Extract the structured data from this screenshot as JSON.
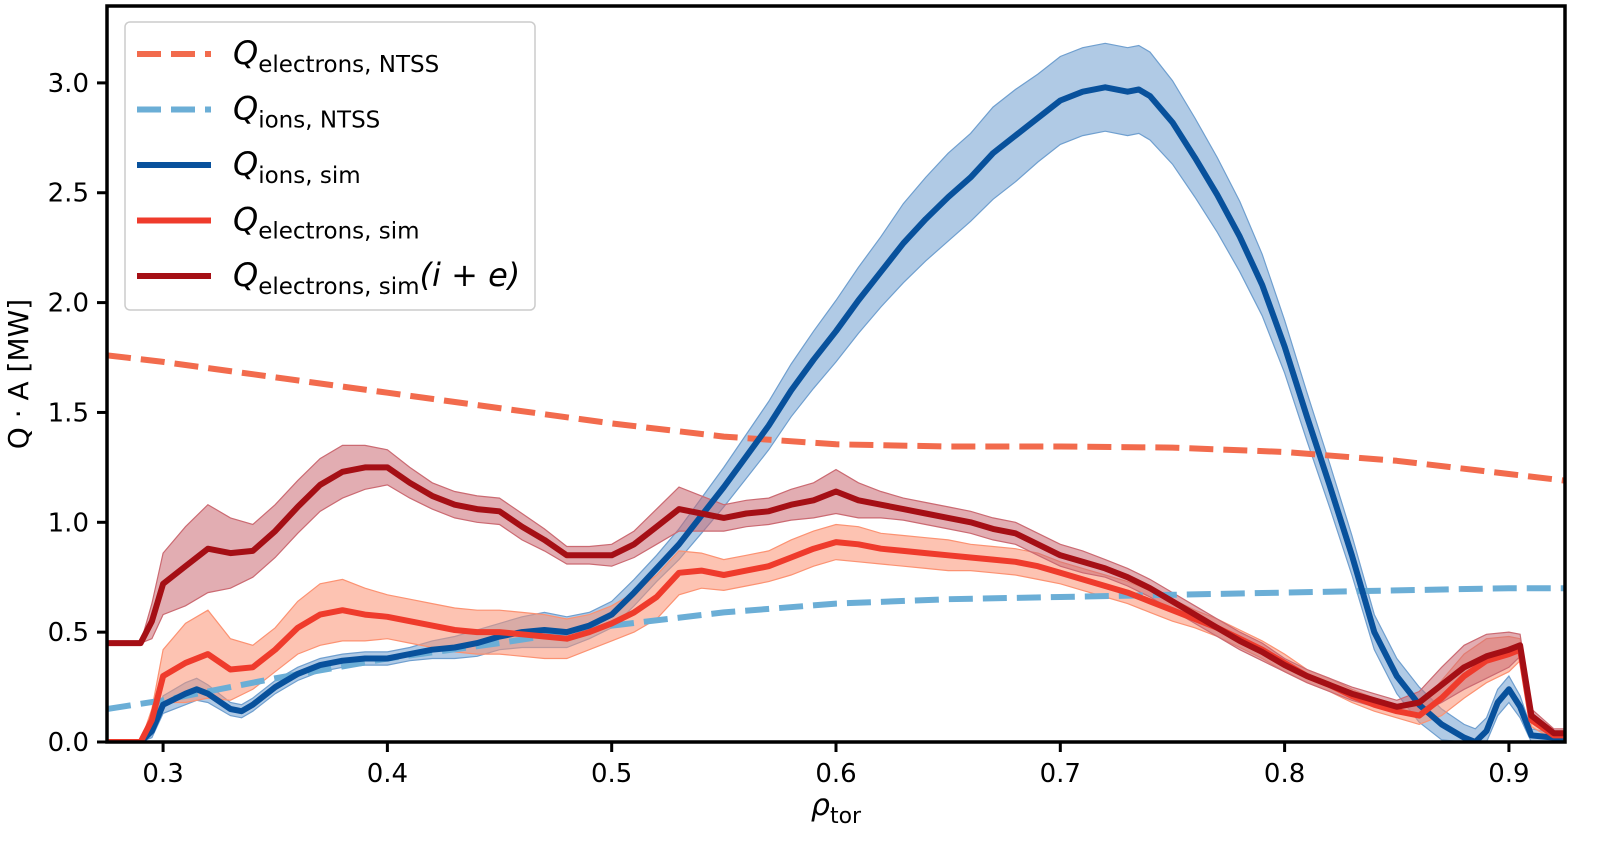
{
  "chart_data": {
    "type": "line",
    "title": "",
    "xlabel": {
      "symbol": "ρ",
      "sub": "tor"
    },
    "ylabel": "Q · A [MW]",
    "xlim": [
      0.275,
      0.925
    ],
    "ylim": [
      0.0,
      3.35
    ],
    "xticks": [
      0.3,
      0.4,
      0.5,
      0.6,
      0.7,
      0.8,
      0.9
    ],
    "xtick_labels": [
      "0.3",
      "0.4",
      "0.5",
      "0.6",
      "0.7",
      "0.8",
      "0.9"
    ],
    "yticks": [
      0.0,
      0.5,
      1.0,
      1.5,
      2.0,
      2.5,
      3.0
    ],
    "ytick_labels": [
      "0.0",
      "0.5",
      "1.0",
      "1.5",
      "2.0",
      "2.5",
      "3.0"
    ],
    "legend_position": "top-left",
    "series": [
      {
        "name": "Q_electrons,NTSS",
        "legend": {
          "symbol": "Q",
          "sub": "electrons, NTSS",
          "suffix": ""
        },
        "color": "#f26b4d",
        "style": "dashed",
        "x": [
          0.275,
          0.3,
          0.35,
          0.4,
          0.45,
          0.5,
          0.55,
          0.6,
          0.65,
          0.7,
          0.75,
          0.8,
          0.85,
          0.9,
          0.925
        ],
        "y": [
          1.76,
          1.73,
          1.66,
          1.59,
          1.52,
          1.45,
          1.39,
          1.355,
          1.345,
          1.345,
          1.34,
          1.32,
          1.28,
          1.22,
          1.19
        ]
      },
      {
        "name": "Q_ions,NTSS",
        "legend": {
          "symbol": "Q",
          "sub": "ions, NTSS",
          "suffix": ""
        },
        "color": "#6baed6",
        "style": "dashed",
        "x": [
          0.275,
          0.3,
          0.35,
          0.4,
          0.45,
          0.5,
          0.55,
          0.6,
          0.65,
          0.7,
          0.75,
          0.8,
          0.85,
          0.9,
          0.925
        ],
        "y": [
          0.15,
          0.19,
          0.29,
          0.38,
          0.45,
          0.53,
          0.59,
          0.63,
          0.65,
          0.66,
          0.67,
          0.68,
          0.69,
          0.7,
          0.7
        ]
      },
      {
        "name": "Q_ions,sim",
        "legend": {
          "symbol": "Q",
          "sub": "ions, sim",
          "suffix": ""
        },
        "color": "#08519c",
        "band_color": "#6f9fcf",
        "style": "solid",
        "x": [
          0.275,
          0.29,
          0.295,
          0.3,
          0.31,
          0.315,
          0.32,
          0.33,
          0.335,
          0.34,
          0.35,
          0.36,
          0.37,
          0.38,
          0.39,
          0.4,
          0.41,
          0.42,
          0.43,
          0.44,
          0.45,
          0.46,
          0.47,
          0.48,
          0.49,
          0.5,
          0.51,
          0.52,
          0.53,
          0.54,
          0.55,
          0.56,
          0.57,
          0.58,
          0.59,
          0.6,
          0.61,
          0.62,
          0.63,
          0.64,
          0.65,
          0.66,
          0.67,
          0.68,
          0.69,
          0.7,
          0.71,
          0.72,
          0.73,
          0.735,
          0.74,
          0.75,
          0.76,
          0.77,
          0.78,
          0.79,
          0.8,
          0.81,
          0.82,
          0.83,
          0.84,
          0.85,
          0.86,
          0.87,
          0.88,
          0.885,
          0.89,
          0.895,
          0.9,
          0.905,
          0.91,
          0.92,
          0.925
        ],
        "y": [
          0.0,
          0.0,
          0.05,
          0.17,
          0.22,
          0.24,
          0.22,
          0.15,
          0.14,
          0.17,
          0.25,
          0.31,
          0.35,
          0.37,
          0.38,
          0.38,
          0.4,
          0.42,
          0.43,
          0.45,
          0.48,
          0.5,
          0.51,
          0.5,
          0.53,
          0.58,
          0.68,
          0.79,
          0.9,
          1.03,
          1.16,
          1.3,
          1.44,
          1.6,
          1.74,
          1.87,
          2.01,
          2.14,
          2.27,
          2.38,
          2.48,
          2.57,
          2.68,
          2.76,
          2.84,
          2.92,
          2.96,
          2.98,
          2.96,
          2.97,
          2.94,
          2.82,
          2.66,
          2.49,
          2.3,
          2.08,
          1.8,
          1.48,
          1.17,
          0.85,
          0.5,
          0.3,
          0.17,
          0.08,
          0.02,
          0.0,
          0.05,
          0.18,
          0.24,
          0.16,
          0.03,
          0.02,
          0.02
        ],
        "band": [
          0.0,
          0.0,
          0.03,
          0.04,
          0.05,
          0.05,
          0.04,
          0.03,
          0.03,
          0.03,
          0.03,
          0.03,
          0.03,
          0.03,
          0.03,
          0.03,
          0.03,
          0.04,
          0.05,
          0.06,
          0.06,
          0.07,
          0.08,
          0.07,
          0.06,
          0.06,
          0.06,
          0.06,
          0.07,
          0.08,
          0.09,
          0.1,
          0.11,
          0.12,
          0.13,
          0.14,
          0.15,
          0.16,
          0.18,
          0.19,
          0.2,
          0.2,
          0.21,
          0.21,
          0.2,
          0.2,
          0.2,
          0.2,
          0.2,
          0.2,
          0.2,
          0.19,
          0.18,
          0.17,
          0.16,
          0.14,
          0.12,
          0.11,
          0.1,
          0.09,
          0.08,
          0.08,
          0.08,
          0.07,
          0.06,
          0.06,
          0.06,
          0.06,
          0.06,
          0.05,
          0.03,
          0.02,
          0.02
        ]
      },
      {
        "name": "Q_electrons,sim",
        "legend": {
          "symbol": "Q",
          "sub": "electrons, sim",
          "suffix": ""
        },
        "color": "#ef3b2c",
        "band_color": "#fc9272",
        "style": "solid",
        "x": [
          0.275,
          0.29,
          0.295,
          0.3,
          0.31,
          0.32,
          0.33,
          0.34,
          0.35,
          0.36,
          0.37,
          0.38,
          0.39,
          0.4,
          0.41,
          0.42,
          0.43,
          0.44,
          0.45,
          0.46,
          0.47,
          0.48,
          0.49,
          0.5,
          0.51,
          0.52,
          0.53,
          0.54,
          0.55,
          0.56,
          0.57,
          0.58,
          0.59,
          0.6,
          0.61,
          0.62,
          0.63,
          0.64,
          0.65,
          0.66,
          0.67,
          0.68,
          0.69,
          0.7,
          0.71,
          0.72,
          0.73,
          0.74,
          0.75,
          0.76,
          0.77,
          0.78,
          0.79,
          0.8,
          0.81,
          0.82,
          0.83,
          0.84,
          0.85,
          0.86,
          0.87,
          0.88,
          0.89,
          0.9,
          0.905,
          0.91,
          0.92,
          0.925
        ],
        "y": [
          0.0,
          0.0,
          0.1,
          0.3,
          0.36,
          0.4,
          0.33,
          0.34,
          0.42,
          0.52,
          0.58,
          0.6,
          0.58,
          0.57,
          0.55,
          0.53,
          0.51,
          0.5,
          0.5,
          0.49,
          0.48,
          0.47,
          0.5,
          0.54,
          0.59,
          0.66,
          0.77,
          0.78,
          0.76,
          0.78,
          0.8,
          0.84,
          0.88,
          0.91,
          0.9,
          0.88,
          0.87,
          0.86,
          0.85,
          0.84,
          0.83,
          0.82,
          0.8,
          0.77,
          0.74,
          0.71,
          0.68,
          0.64,
          0.6,
          0.56,
          0.52,
          0.47,
          0.42,
          0.36,
          0.3,
          0.26,
          0.21,
          0.17,
          0.14,
          0.12,
          0.2,
          0.3,
          0.37,
          0.4,
          0.42,
          0.1,
          0.03,
          0.03
        ],
        "band": [
          0.0,
          0.0,
          0.05,
          0.12,
          0.18,
          0.2,
          0.14,
          0.1,
          0.1,
          0.12,
          0.14,
          0.14,
          0.12,
          0.1,
          0.1,
          0.1,
          0.1,
          0.1,
          0.1,
          0.1,
          0.1,
          0.09,
          0.08,
          0.08,
          0.09,
          0.1,
          0.1,
          0.08,
          0.07,
          0.07,
          0.07,
          0.08,
          0.08,
          0.08,
          0.08,
          0.07,
          0.07,
          0.07,
          0.07,
          0.06,
          0.06,
          0.06,
          0.06,
          0.05,
          0.05,
          0.05,
          0.05,
          0.05,
          0.05,
          0.04,
          0.04,
          0.04,
          0.04,
          0.04,
          0.03,
          0.03,
          0.03,
          0.03,
          0.03,
          0.04,
          0.08,
          0.1,
          0.1,
          0.08,
          0.05,
          0.03,
          0.02,
          0.02
        ]
      },
      {
        "name": "Q_electrons,sim(i+e)",
        "legend": {
          "symbol": "Q",
          "sub": "electrons, sim",
          "suffix": "(i + e)"
        },
        "color": "#a50f15",
        "band_color": "#cb6a72",
        "style": "solid",
        "x": [
          0.275,
          0.29,
          0.295,
          0.3,
          0.31,
          0.32,
          0.33,
          0.34,
          0.35,
          0.36,
          0.37,
          0.38,
          0.39,
          0.4,
          0.41,
          0.42,
          0.43,
          0.44,
          0.45,
          0.46,
          0.47,
          0.48,
          0.49,
          0.5,
          0.51,
          0.52,
          0.53,
          0.54,
          0.55,
          0.56,
          0.57,
          0.58,
          0.59,
          0.6,
          0.61,
          0.62,
          0.63,
          0.64,
          0.65,
          0.66,
          0.67,
          0.68,
          0.69,
          0.7,
          0.71,
          0.72,
          0.73,
          0.74,
          0.75,
          0.76,
          0.77,
          0.78,
          0.79,
          0.8,
          0.81,
          0.82,
          0.83,
          0.84,
          0.85,
          0.86,
          0.87,
          0.88,
          0.89,
          0.9,
          0.905,
          0.91,
          0.92,
          0.925
        ],
        "y": [
          0.45,
          0.45,
          0.55,
          0.72,
          0.8,
          0.88,
          0.86,
          0.87,
          0.96,
          1.07,
          1.17,
          1.23,
          1.25,
          1.25,
          1.18,
          1.12,
          1.08,
          1.06,
          1.05,
          0.98,
          0.92,
          0.85,
          0.85,
          0.85,
          0.9,
          0.98,
          1.06,
          1.04,
          1.02,
          1.04,
          1.05,
          1.08,
          1.1,
          1.14,
          1.1,
          1.08,
          1.06,
          1.04,
          1.02,
          1.0,
          0.97,
          0.95,
          0.9,
          0.85,
          0.82,
          0.79,
          0.75,
          0.7,
          0.64,
          0.58,
          0.52,
          0.46,
          0.41,
          0.35,
          0.3,
          0.26,
          0.22,
          0.19,
          0.16,
          0.18,
          0.26,
          0.34,
          0.39,
          0.42,
          0.44,
          0.12,
          0.04,
          0.04
        ],
        "band": [
          0.0,
          0.0,
          0.08,
          0.14,
          0.18,
          0.2,
          0.16,
          0.12,
          0.12,
          0.12,
          0.12,
          0.12,
          0.1,
          0.08,
          0.07,
          0.06,
          0.06,
          0.06,
          0.06,
          0.06,
          0.05,
          0.04,
          0.04,
          0.05,
          0.06,
          0.08,
          0.1,
          0.08,
          0.06,
          0.06,
          0.06,
          0.07,
          0.08,
          0.1,
          0.08,
          0.06,
          0.05,
          0.05,
          0.05,
          0.05,
          0.05,
          0.05,
          0.05,
          0.05,
          0.05,
          0.04,
          0.04,
          0.04,
          0.04,
          0.04,
          0.04,
          0.04,
          0.04,
          0.03,
          0.03,
          0.03,
          0.03,
          0.03,
          0.03,
          0.05,
          0.08,
          0.1,
          0.1,
          0.08,
          0.05,
          0.03,
          0.02,
          0.02
        ]
      }
    ]
  }
}
